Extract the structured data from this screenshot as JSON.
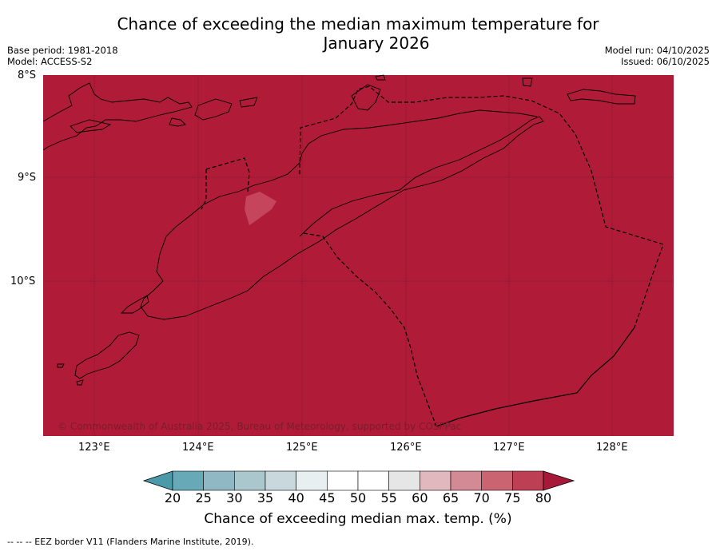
{
  "title": {
    "line1": "Chance of exceeding the median maximum temperature for",
    "line2": "January 2026"
  },
  "meta_left": {
    "base_period": "Base period: 1981-2018",
    "model": "Model: ACCESS-S2"
  },
  "meta_right": {
    "model_run": "Model run: 04/10/2025",
    "issued": "Issued: 06/10/2025"
  },
  "map": {
    "fill_color": "#b01c37",
    "lat_ticks": [
      "8°S",
      "9°S",
      "10°S"
    ],
    "lon_ticks": [
      "123°E",
      "124°E",
      "125°E",
      "126°E",
      "127°E",
      "128°E"
    ],
    "copyright": "© Commonwealth of Australia 2025, Bureau of Meteorology, supported by COSPPac"
  },
  "colorbar": {
    "ticks": [
      "20",
      "25",
      "30",
      "35",
      "40",
      "45",
      "50",
      "55",
      "60",
      "65",
      "70",
      "75",
      "80"
    ],
    "colors": [
      "#68a9b8",
      "#8fb8c4",
      "#a9c7cd",
      "#c8d8dc",
      "#e8eff0",
      "#ffffff",
      "#ffffff",
      "#e6e6e6",
      "#e2b8bf",
      "#d48a94",
      "#c96470",
      "#bd3f53"
    ],
    "under_color": "#4b9aaa",
    "over_color": "#a81838",
    "label": "Chance of exceeding median max. temp. (%)"
  },
  "footer": "--  --  -- EEZ border V11 (Flanders Marine Institute, 2019)."
}
